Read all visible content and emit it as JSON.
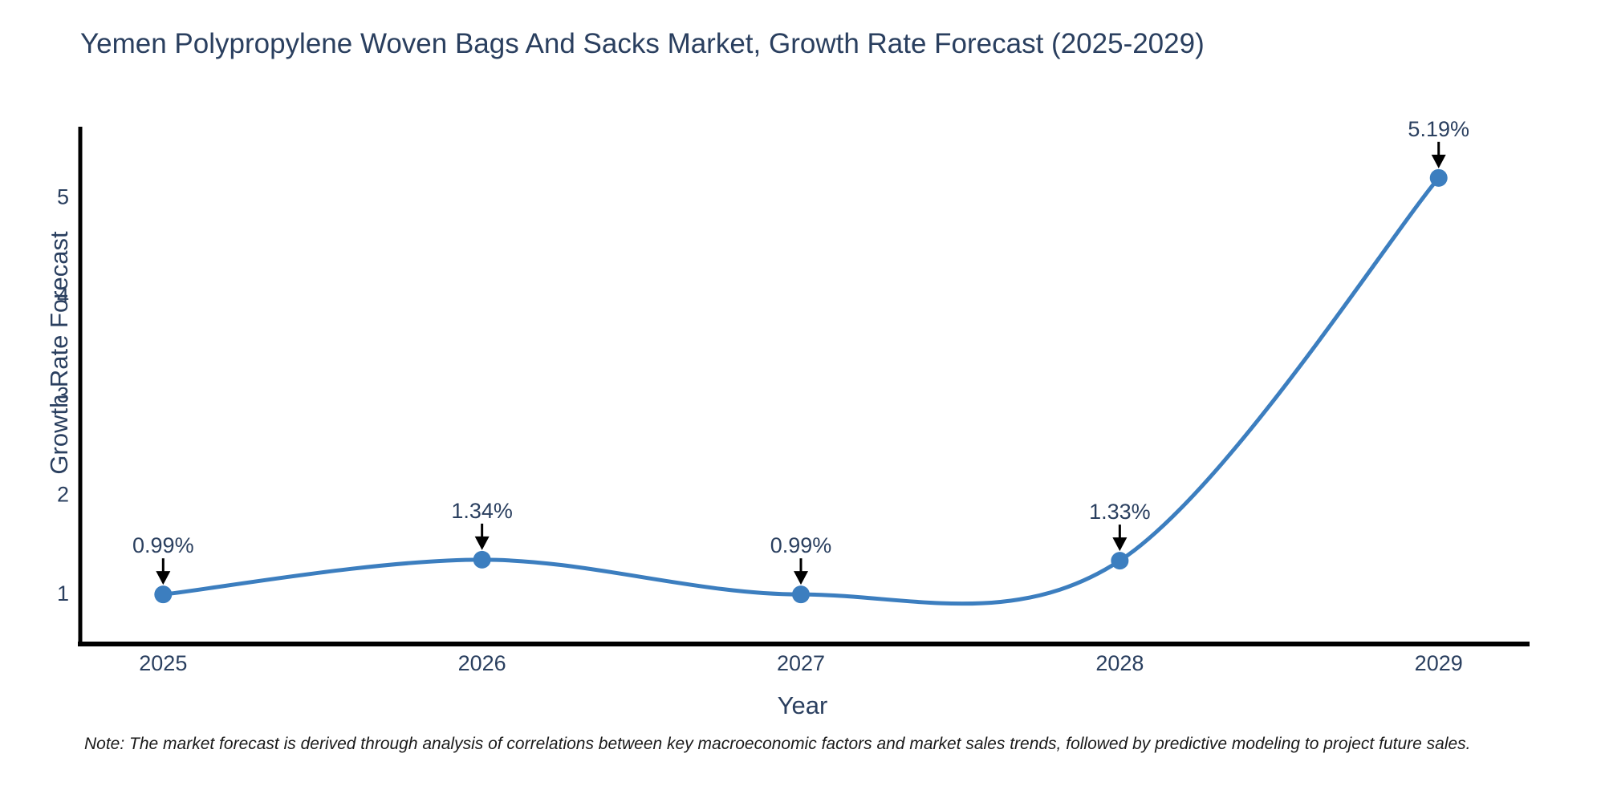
{
  "note": "Note: The market forecast is derived through analysis of correlations between key macroeconomic factors and market sales trends, followed by predictive modeling to project future sales.",
  "colors": {
    "line": "#3c7ebf",
    "marker": "#3c7ebf",
    "axis_line": "#000000",
    "text": "#2a3f5f",
    "annotation_arrow": "#000000",
    "note_text": "#1a1a1a",
    "background": "#ffffff"
  },
  "chart_data": {
    "type": "line",
    "title": "Yemen Polypropylene Woven Bags And Sacks Market, Growth Rate Forecast (2025-2029)",
    "xlabel": "Year",
    "ylabel": "Growth Rate Forecast",
    "categories": [
      "2025",
      "2026",
      "2027",
      "2028",
      "2029"
    ],
    "x": [
      2025,
      2026,
      2027,
      2028,
      2029
    ],
    "values": [
      0.99,
      1.34,
      0.99,
      1.33,
      5.19
    ],
    "point_labels": [
      "0.99%",
      "1.34%",
      "0.99%",
      "1.33%",
      "5.19%"
    ],
    "series": [
      {
        "name": "Growth Rate Forecast",
        "values": [
          0.99,
          1.34,
          0.99,
          1.33,
          5.19
        ]
      }
    ],
    "yticks": [
      1,
      2,
      3,
      4,
      5
    ],
    "xlim": [
      2024.74,
      2029.27
    ],
    "ylim": [
      0.49,
      5.69
    ],
    "grid": false,
    "legend": "none",
    "line_shape": "spline",
    "markers": true,
    "annotations": true
  }
}
